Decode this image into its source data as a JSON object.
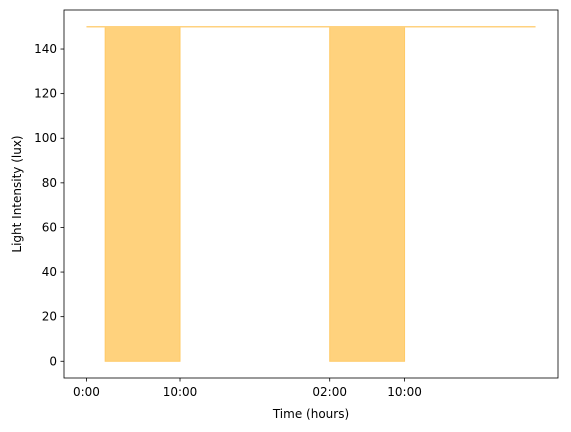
{
  "chart_data": {
    "type": "area",
    "title": "",
    "xlabel": "Time (hours)",
    "ylabel": "Light Intensity (lux)",
    "xlim": [
      -2.4,
      50.4
    ],
    "ylim": [
      -7.5,
      157.5
    ],
    "x_ticks": [
      {
        "value": 0,
        "label": "0:00"
      },
      {
        "value": 10,
        "label": "10:00"
      },
      {
        "value": 26,
        "label": "02:00"
      },
      {
        "value": 34,
        "label": "10:00"
      }
    ],
    "y_ticks": [
      0,
      20,
      40,
      60,
      80,
      100,
      120,
      140
    ],
    "series": [
      {
        "type": "line",
        "x": [
          0,
          48
        ],
        "y": [
          150,
          150
        ],
        "color": "#FFD27F"
      },
      {
        "type": "fill-between",
        "color": "#FFCA66",
        "regions": [
          {
            "x_start": 2,
            "x_end": 10,
            "y_low": 0,
            "y_high": 150
          },
          {
            "x_start": 26,
            "x_end": 34,
            "y_low": 0,
            "y_high": 150
          }
        ]
      }
    ],
    "grid": false,
    "legend": "none"
  }
}
